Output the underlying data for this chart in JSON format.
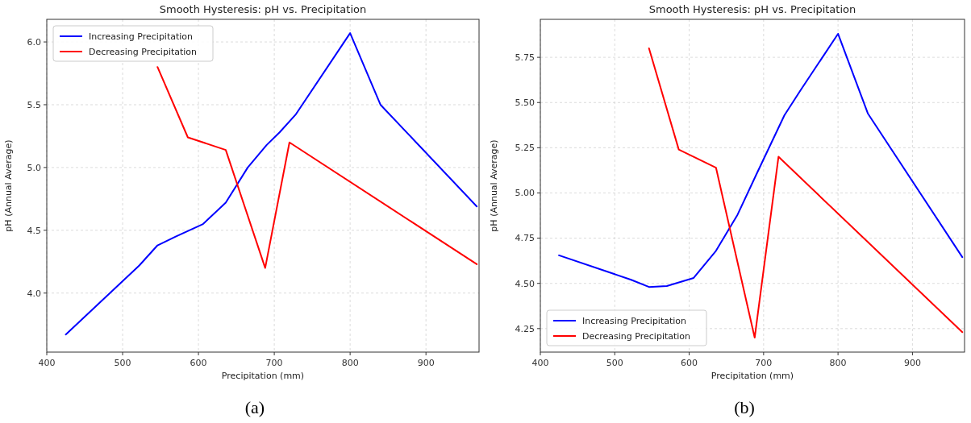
{
  "chart_data": [
    {
      "type": "line",
      "title": "Smooth Hysteresis: pH vs. Precipitation",
      "xlabel": "Precipitation (mm)",
      "ylabel": "pH (Annual Average)",
      "annotations": [
        "(a)"
      ],
      "xlim": [
        400,
        970
      ],
      "xticks": [
        400,
        500,
        600,
        700,
        800,
        900
      ],
      "ylim": [
        3.53,
        6.18
      ],
      "yticks": [
        {
          "value": 4.0,
          "label": "4.0"
        },
        {
          "value": 4.5,
          "label": "4.5"
        },
        {
          "value": 5.0,
          "label": "5.0"
        },
        {
          "value": 5.5,
          "label": "5.5"
        },
        {
          "value": 6.0,
          "label": "6.0"
        }
      ],
      "grid": true,
      "legend": "top left",
      "line_style": "solid",
      "series": [
        {
          "name": "Increasing Precipitation",
          "color": "#0000ff",
          "x": [
            425,
            522,
            546,
            570,
            606,
            636,
            665,
            690,
            707,
            728,
            800,
            840,
            967
          ],
          "values": [
            3.67,
            4.22,
            4.38,
            4.45,
            4.55,
            4.72,
            5.0,
            5.18,
            5.28,
            5.42,
            6.07,
            5.5,
            4.69
          ]
        },
        {
          "name": "Decreasing Precipitation",
          "color": "#ff0000",
          "x": [
            546,
            586,
            636,
            688,
            720,
            967
          ],
          "values": [
            5.8,
            5.24,
            5.14,
            4.2,
            5.2,
            4.23
          ]
        }
      ]
    },
    {
      "type": "line",
      "title": "Smooth Hysteresis: pH vs. Precipitation",
      "xlabel": "Precipitation (mm)",
      "ylabel": "pH (Annual Average)",
      "annotations": [
        "(b)"
      ],
      "xlim": [
        400,
        970
      ],
      "xticks": [
        400,
        500,
        600,
        700,
        800,
        900
      ],
      "ylim": [
        4.12,
        5.96
      ],
      "yticks": [
        {
          "value": 4.25,
          "label": "4.25"
        },
        {
          "value": 4.5,
          "label": "4.50"
        },
        {
          "value": 4.75,
          "label": "4.75"
        },
        {
          "value": 5.0,
          "label": "5.00"
        },
        {
          "value": 5.25,
          "label": "5.25"
        },
        {
          "value": 5.5,
          "label": "5.50"
        },
        {
          "value": 5.75,
          "label": "5.75"
        }
      ],
      "grid": true,
      "legend": "bottom left",
      "line_style": "solid",
      "series": [
        {
          "name": "Increasing Precipitation",
          "color": "#0000ff",
          "x": [
            425,
            522,
            546,
            570,
            606,
            636,
            665,
            690,
            728,
            750,
            800,
            840,
            967
          ],
          "values": [
            4.655,
            4.52,
            4.48,
            4.485,
            4.53,
            4.68,
            4.88,
            5.1,
            5.43,
            5.57,
            5.88,
            5.44,
            4.645
          ]
        },
        {
          "name": "Decreasing Precipitation",
          "color": "#ff0000",
          "x": [
            546,
            586,
            636,
            688,
            720,
            967
          ],
          "values": [
            5.8,
            5.24,
            5.14,
            4.2,
            5.2,
            4.23
          ]
        }
      ]
    }
  ]
}
